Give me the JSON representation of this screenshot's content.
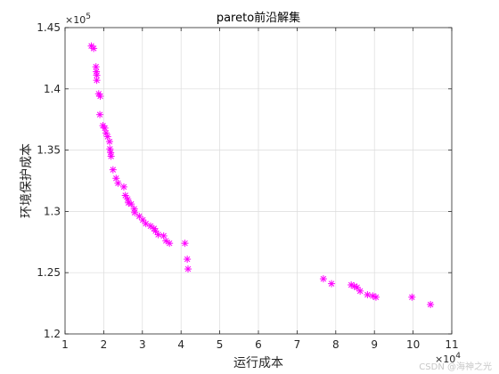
{
  "chart_data": {
    "type": "scatter",
    "title": "pareto前沿解集",
    "xlabel": "运行成本",
    "ylabel": "环境保护成本",
    "x_multiplier_label": "×10",
    "x_multiplier_exp": "4",
    "y_multiplier_label": "×10",
    "y_multiplier_exp": "5",
    "xlim": [
      1,
      11
    ],
    "ylim": [
      1.2,
      1.45
    ],
    "x_ticks": [
      1,
      2,
      3,
      4,
      5,
      6,
      7,
      8,
      9,
      10,
      11
    ],
    "y_ticks": [
      1.2,
      1.25,
      1.3,
      1.35,
      1.4,
      1.45
    ],
    "y_tick_labels": [
      "1.2",
      "1.25",
      "1.3",
      "1.35",
      "1.4",
      "1.45"
    ],
    "grid": true,
    "marker": "*",
    "color": "#ff00ff",
    "points": [
      [
        1.68,
        1.435
      ],
      [
        1.74,
        1.433
      ],
      [
        1.8,
        1.418
      ],
      [
        1.81,
        1.414
      ],
      [
        1.82,
        1.411
      ],
      [
        1.82,
        1.407
      ],
      [
        1.87,
        1.396
      ],
      [
        1.91,
        1.394
      ],
      [
        1.9,
        1.379
      ],
      [
        1.98,
        1.37
      ],
      [
        2.03,
        1.368
      ],
      [
        2.06,
        1.364
      ],
      [
        2.1,
        1.361
      ],
      [
        2.15,
        1.357
      ],
      [
        2.16,
        1.351
      ],
      [
        2.18,
        1.348
      ],
      [
        2.19,
        1.345
      ],
      [
        2.24,
        1.334
      ],
      [
        2.32,
        1.327
      ],
      [
        2.37,
        1.323
      ],
      [
        2.52,
        1.32
      ],
      [
        2.56,
        1.313
      ],
      [
        2.62,
        1.31
      ],
      [
        2.64,
        1.307
      ],
      [
        2.71,
        1.306
      ],
      [
        2.79,
        1.302
      ],
      [
        2.8,
        1.299
      ],
      [
        2.92,
        1.296
      ],
      [
        3.01,
        1.293
      ],
      [
        3.09,
        1.29
      ],
      [
        3.21,
        1.288
      ],
      [
        3.3,
        1.286
      ],
      [
        3.34,
        1.284
      ],
      [
        3.41,
        1.281
      ],
      [
        3.55,
        1.28
      ],
      [
        3.61,
        1.276
      ],
      [
        3.7,
        1.274
      ],
      [
        4.1,
        1.274
      ],
      [
        4.16,
        1.261
      ],
      [
        4.18,
        1.253
      ],
      [
        7.68,
        1.245
      ],
      [
        7.89,
        1.241
      ],
      [
        8.4,
        1.24
      ],
      [
        8.48,
        1.239
      ],
      [
        8.55,
        1.238
      ],
      [
        8.63,
        1.235
      ],
      [
        8.82,
        1.232
      ],
      [
        8.96,
        1.231
      ],
      [
        9.04,
        1.23
      ],
      [
        9.97,
        1.23
      ],
      [
        10.45,
        1.224
      ]
    ]
  },
  "watermark": "CSDN @海神之光"
}
